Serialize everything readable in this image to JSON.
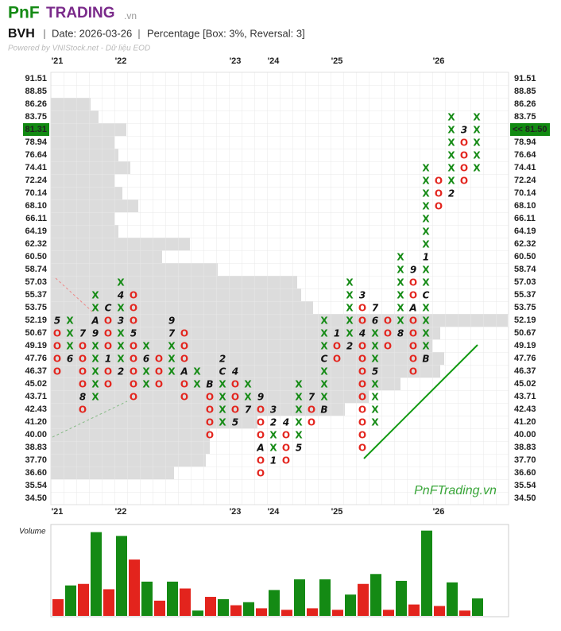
{
  "header": {
    "brand_left": "PnF",
    "brand_right": "TRADING",
    "brand_suffix": ".vn",
    "symbol": "BVH",
    "date_label": "Date: 2026-03-26",
    "method_label": "Percentage [Box: 3%, Reversal: 3]",
    "powered_by": "Powered by VNIStock.net - Dữ liệu EOD"
  },
  "chart_data": {
    "type": "pnf",
    "watermark": "PnFTrading.vn",
    "colors": {
      "X": "#148a14",
      "O": "#e3241d",
      "marker": "#111111",
      "highlight": "#128a12",
      "profile": "#dcdcdc"
    },
    "levels": [
      91.51,
      88.85,
      86.26,
      83.75,
      81.31,
      78.94,
      76.64,
      74.41,
      72.24,
      70.14,
      {
        "value": 68.1,
        "label": "68.10"
      },
      66.11,
      64.19,
      62.32,
      {
        "value": 60.5,
        "label": "60.50"
      },
      58.74,
      57.03,
      55.37,
      53.75,
      52.19,
      50.67,
      49.19,
      47.76,
      46.37,
      45.02,
      43.71,
      42.43,
      {
        "value": 41.2,
        "label": "41.20"
      },
      {
        "value": 40,
        "label": "40.00"
      },
      38.83,
      {
        "value": 37.7,
        "label": "37.70"
      },
      {
        "value": 36.6,
        "label": "36.60"
      },
      35.54,
      {
        "value": 34.5,
        "label": "34.50"
      }
    ],
    "last_price": {
      "value": 81.5,
      "label": "<< 81.50"
    },
    "categories": [
      "'21",
      null,
      null,
      null,
      null,
      "'22",
      null,
      null,
      null,
      null,
      null,
      null,
      null,
      null,
      "'23",
      null,
      null,
      "'24",
      null,
      null,
      null,
      null,
      "'25",
      null,
      null,
      null,
      null,
      null,
      null,
      null,
      "'26",
      null,
      null,
      null
    ],
    "columns": [
      {
        "box": "O",
        "high": 52.19,
        "low": 46.37,
        "markers": [
          {
            "price": 52.19,
            "label": "5"
          }
        ]
      },
      {
        "box": "X",
        "high": 52.19,
        "low": 47.76,
        "markers": [
          {
            "price": 47.76,
            "label": "6"
          }
        ]
      },
      {
        "box": "O",
        "high": 50.67,
        "low": 42.43,
        "markers": [
          {
            "price": 50.67,
            "label": "7"
          },
          {
            "price": 43.71,
            "label": "8"
          }
        ]
      },
      {
        "box": "X",
        "high": 55.37,
        "low": 43.71,
        "markers": [
          {
            "price": 50.67,
            "label": "9"
          },
          {
            "price": 52.19,
            "label": "A"
          }
        ]
      },
      {
        "box": "O",
        "high": 53.75,
        "low": 45.02,
        "markers": [
          {
            "price": 53.75,
            "label": "C"
          },
          {
            "price": 47.76,
            "label": "1"
          }
        ]
      },
      {
        "box": "X",
        "high": 57.03,
        "low": 46.37,
        "markers": [
          {
            "price": 46.37,
            "label": "2"
          },
          {
            "price": 52.19,
            "label": "3"
          },
          {
            "price": 55.37,
            "label": "4"
          }
        ]
      },
      {
        "box": "O",
        "high": 55.37,
        "low": 43.71,
        "markers": [
          {
            "price": 50.67,
            "label": "5"
          }
        ]
      },
      {
        "box": "X",
        "high": 49.19,
        "low": 45.02,
        "markers": [
          {
            "price": 47.76,
            "label": "6"
          }
        ]
      },
      {
        "box": "O",
        "high": 47.76,
        "low": 45.02,
        "markers": []
      },
      {
        "box": "X",
        "high": 52.19,
        "low": 46.37,
        "markers": [
          {
            "price": 50.67,
            "label": "7"
          },
          {
            "price": 52.19,
            "label": "9"
          }
        ]
      },
      {
        "box": "O",
        "high": 50.67,
        "low": 43.71,
        "markers": [
          {
            "price": 46.37,
            "label": "A"
          }
        ]
      },
      {
        "box": "X",
        "high": 46.37,
        "low": 45.02,
        "markers": []
      },
      {
        "box": "O",
        "high": 45.02,
        "low": 40,
        "markers": [
          {
            "price": 45.02,
            "label": "B"
          }
        ]
      },
      {
        "box": "X",
        "high": 47.76,
        "low": 41.2,
        "markers": [
          {
            "price": 46.37,
            "label": "C"
          },
          {
            "price": 47.76,
            "label": "2"
          }
        ]
      },
      {
        "box": "O",
        "high": 46.37,
        "low": 41.2,
        "markers": [
          {
            "price": 46.37,
            "label": "4"
          },
          {
            "price": 41.2,
            "label": "5"
          }
        ]
      },
      {
        "box": "X",
        "high": 45.02,
        "low": 42.43,
        "markers": [
          {
            "price": 42.43,
            "label": "7"
          }
        ]
      },
      {
        "box": "O",
        "high": 43.71,
        "low": 36.6,
        "markers": [
          {
            "price": 43.71,
            "label": "9"
          },
          {
            "price": 38.83,
            "label": "A"
          }
        ]
      },
      {
        "box": "X",
        "high": 42.43,
        "low": 37.7,
        "markers": [
          {
            "price": 37.7,
            "label": "1"
          },
          {
            "price": 41.2,
            "label": "2"
          },
          {
            "price": 42.43,
            "label": "3"
          }
        ]
      },
      {
        "box": "O",
        "high": 41.2,
        "low": 37.7,
        "markers": [
          {
            "price": 41.2,
            "label": "4"
          }
        ]
      },
      {
        "box": "X",
        "high": 45.02,
        "low": 38.83,
        "markers": [
          {
            "price": 38.83,
            "label": "5"
          }
        ]
      },
      {
        "box": "O",
        "high": 43.71,
        "low": 41.2,
        "markers": [
          {
            "price": 43.71,
            "label": "7"
          }
        ]
      },
      {
        "box": "X",
        "high": 52.19,
        "low": 42.43,
        "markers": [
          {
            "price": 42.43,
            "label": "B"
          },
          {
            "price": 47.76,
            "label": "C"
          }
        ]
      },
      {
        "box": "O",
        "high": 50.67,
        "low": 47.76,
        "markers": [
          {
            "price": 50.67,
            "label": "1"
          }
        ]
      },
      {
        "box": "X",
        "high": 57.03,
        "low": 49.19,
        "markers": [
          {
            "price": 49.19,
            "label": "2"
          }
        ]
      },
      {
        "box": "O",
        "high": 55.37,
        "low": 38.83,
        "markers": [
          {
            "price": 55.37,
            "label": "3"
          },
          {
            "price": 50.67,
            "label": "4"
          }
        ]
      },
      {
        "box": "X",
        "high": 53.75,
        "low": 41.2,
        "markers": [
          {
            "price": 46.37,
            "label": "5"
          },
          {
            "price": 52.19,
            "label": "6"
          },
          {
            "price": 53.75,
            "label": "7"
          }
        ]
      },
      {
        "box": "O",
        "high": 52.19,
        "low": 49.19,
        "markers": []
      },
      {
        "box": "X",
        "high": 60.5,
        "low": 50.67,
        "markers": [
          {
            "price": 50.67,
            "label": "8"
          }
        ]
      },
      {
        "box": "O",
        "high": 58.74,
        "low": 46.37,
        "markers": [
          {
            "price": 58.74,
            "label": "9"
          },
          {
            "price": 53.75,
            "label": "A"
          }
        ]
      },
      {
        "box": "X",
        "high": 74.41,
        "low": 47.76,
        "markers": [
          {
            "price": 47.76,
            "label": "B"
          },
          {
            "price": 55.37,
            "label": "C"
          },
          {
            "price": 60.5,
            "label": "1"
          }
        ]
      },
      {
        "box": "O",
        "high": 72.24,
        "low": 68.1,
        "markers": []
      },
      {
        "box": "X",
        "high": 83.75,
        "low": 70.14,
        "markers": [
          {
            "price": 70.14,
            "label": "2"
          }
        ]
      },
      {
        "box": "O",
        "high": 81.31,
        "low": 72.24,
        "markers": [
          {
            "price": 81.31,
            "label": "3"
          }
        ]
      },
      {
        "box": "X",
        "high": 83.75,
        "low": 74.41,
        "markers": []
      }
    ],
    "volume": {
      "label": "Volume",
      "ylim": [
        0,
        120
      ],
      "values": [
        22,
        40,
        42,
        110,
        35,
        105,
        74,
        45,
        20,
        45,
        36,
        7,
        25,
        22,
        14,
        18,
        10,
        34,
        8,
        48,
        10,
        48,
        8,
        28,
        42,
        55,
        8,
        46,
        15,
        112,
        13,
        44,
        7,
        23
      ]
    },
    "volume_profile": {
      "xlim": [
        0,
        576
      ],
      "values": [
        0,
        0,
        50,
        60,
        95,
        80,
        85,
        100,
        80,
        90,
        110,
        80,
        85,
        175,
        140,
        210,
        310,
        315,
        330,
        575,
        490,
        480,
        495,
        490,
        440,
        400,
        370,
        260,
        200,
        200,
        195,
        155,
        0,
        0
      ]
    }
  }
}
